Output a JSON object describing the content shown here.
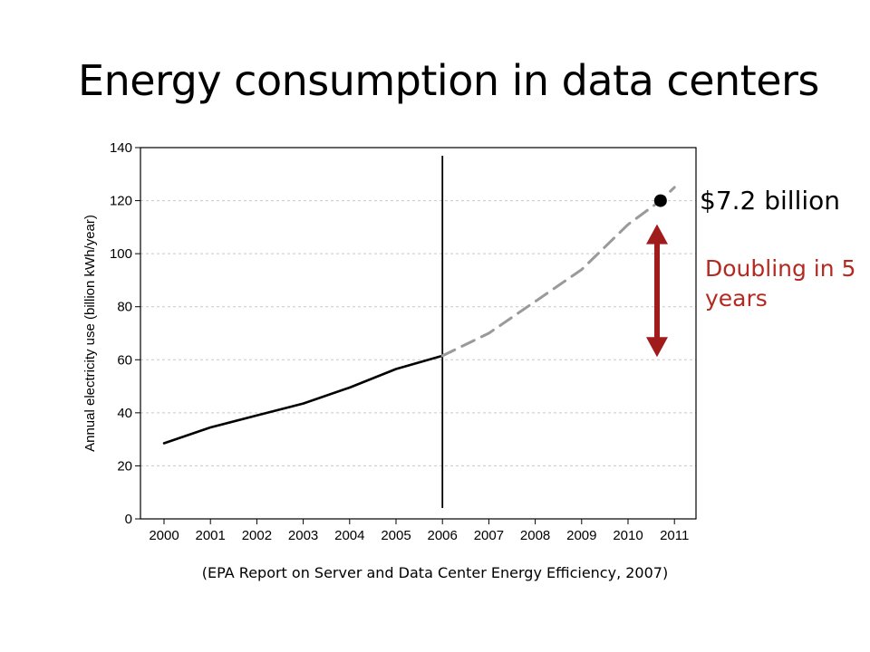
{
  "slide": {
    "title": "Energy consumption in data centers",
    "source_caption": "(EPA Report on Server and Data Center Energy Efficiency, 2007)"
  },
  "annotations": {
    "price_label": "$7.2 billion",
    "doubling_label": "Doubling in 5 years",
    "arrow_color": "#a01c1c",
    "label_color": "#b42a22"
  },
  "chart_data": {
    "type": "line",
    "title": "",
    "xlabel": "",
    "ylabel": "Annual electricity use (billion kWh/year)",
    "xlim": [
      2000,
      2011
    ],
    "ylim": [
      0,
      140
    ],
    "x_ticks": [
      "2000",
      "2001",
      "2002",
      "2003",
      "2004",
      "2005",
      "2006",
      "2007",
      "2008",
      "2009",
      "2010",
      "2011"
    ],
    "y_ticks": [
      "0",
      "20",
      "40",
      "60",
      "80",
      "100",
      "120",
      "140"
    ],
    "grid": "horizontal dashed",
    "series": [
      {
        "style": "solid",
        "color": "#000000",
        "x": [
          2000,
          2001,
          2002,
          2003,
          2004,
          2005,
          2006
        ],
        "y": [
          28.5,
          34.5,
          39,
          43.5,
          49.5,
          56.5,
          61.5
        ]
      },
      {
        "style": "dashed",
        "color": "#9a9a9a",
        "x": [
          2006,
          2007,
          2008,
          2009,
          2010,
          2010.7,
          2011
        ],
        "y": [
          61.5,
          70,
          82,
          94,
          111,
          120,
          125
        ]
      }
    ],
    "vertical_marker_x": 2006,
    "highlight_point": {
      "x": 2010.7,
      "y": 120
    },
    "arrow_range": [
      60,
      120
    ]
  }
}
